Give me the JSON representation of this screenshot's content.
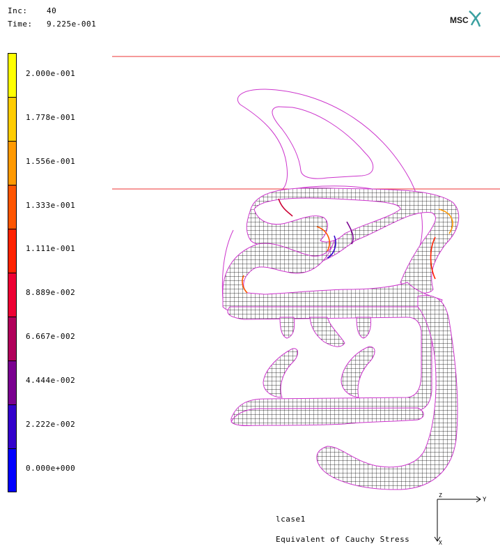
{
  "header": {
    "inc_label": "Inc:",
    "inc_value": "40",
    "time_label": "Time:",
    "time_value": "9.225e-001"
  },
  "logo": {
    "text": "MSC"
  },
  "legend": {
    "labels": [
      "2.000e-001",
      "1.778e-001",
      "1.556e-001",
      "1.333e-001",
      "1.111e-001",
      "8.889e-002",
      "6.667e-002",
      "4.444e-002",
      "2.222e-002",
      "0.000e+000"
    ],
    "colors": [
      "#ffff00",
      "#ffcc00",
      "#ff9900",
      "#ff5500",
      "#ff2200",
      "#ee0033",
      "#b0005a",
      "#7a0090",
      "#3300cc",
      "#0000ff"
    ]
  },
  "footer": {
    "case_name": "lcase1",
    "result_name": "Equivalent of Cauchy Stress"
  },
  "axes": {
    "x": "X",
    "y": "Y",
    "z": "Z"
  },
  "colors": {
    "outline": "#cc33cc",
    "rigid_line": "#ee3333",
    "mesh": "#000000"
  }
}
